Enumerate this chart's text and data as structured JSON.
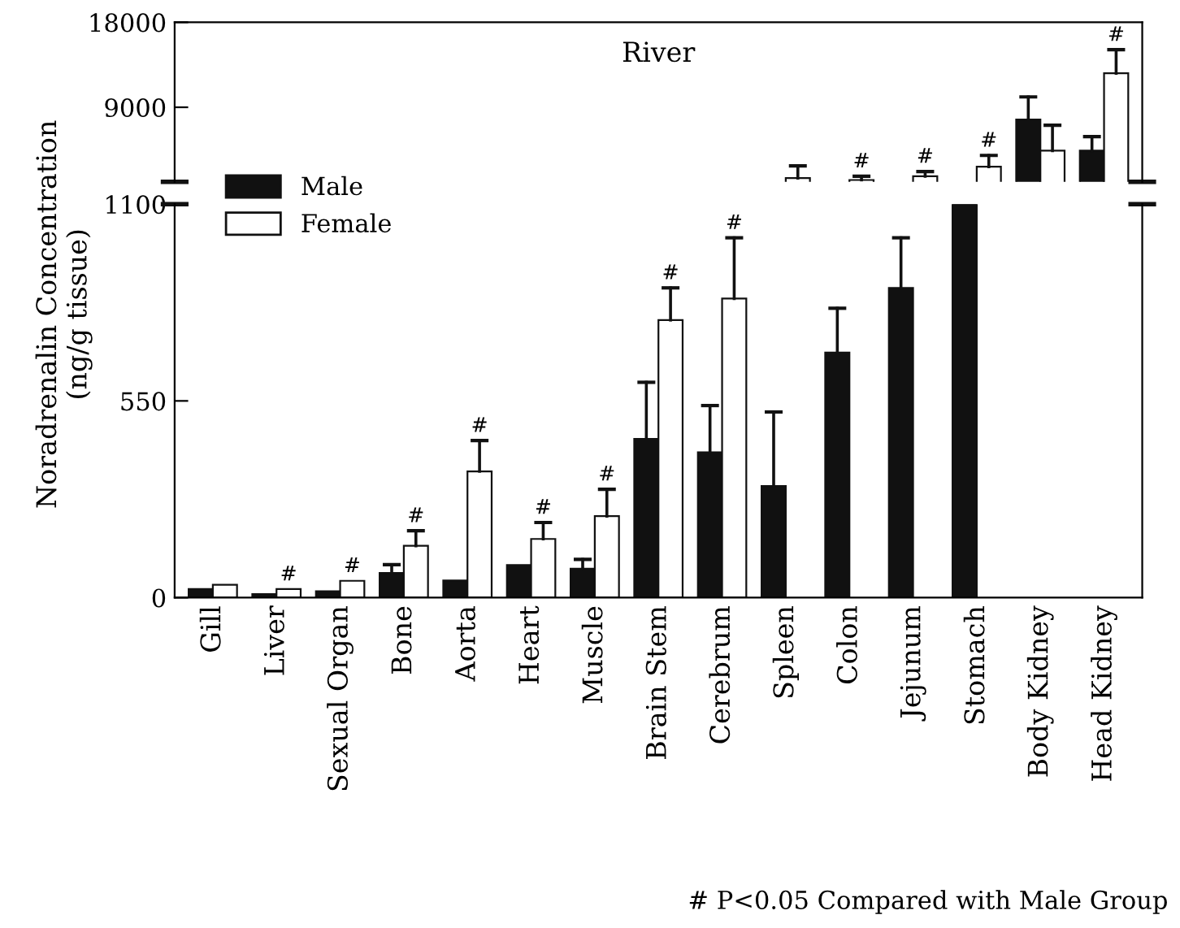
{
  "chart_data": [
    {
      "type": "bar",
      "title": "River",
      "categories": [
        "Gill",
        "Liver",
        "Sexual Organ",
        "Bone",
        "Aorta",
        "Heart",
        "Muscle",
        "Brain Stem",
        "Cerebrum",
        "Spleen",
        "Colon",
        "Jejunum",
        "Stomach",
        "Body Kidney",
        "Head Kidney"
      ],
      "series": [
        {
          "color": "#111111",
          "values": [
            null,
            null,
            null,
            null,
            null,
            null,
            null,
            null,
            null,
            null,
            null,
            null,
            null,
            7700,
            4400
          ],
          "errors": [
            null,
            null,
            null,
            null,
            null,
            null,
            null,
            null,
            null,
            null,
            null,
            null,
            null,
            [
              7700,
              10100
            ],
            [
              4400,
              5900
            ]
          ]
        },
        {
          "color": "#ffffff",
          "values": [
            null,
            null,
            null,
            null,
            null,
            null,
            null,
            null,
            null,
            1500,
            1300,
            1700,
            2700,
            4400,
            12600
          ],
          "errors": [
            null,
            null,
            null,
            null,
            null,
            null,
            null,
            null,
            null,
            [
              1500,
              2800
            ],
            [
              1300,
              1700
            ],
            [
              1700,
              2200
            ],
            [
              2700,
              3900
            ],
            [
              4400,
              7100
            ],
            [
              12600,
              15100
            ]
          ]
        }
      ],
      "ylim": [
        1100,
        18000
      ],
      "yticks": [
        9000,
        18000
      ],
      "tick_labels": "y",
      "grid": false,
      "annotations": [
        {
          "text": "#",
          "x": "Colon",
          "y": 1700
        },
        {
          "text": "#",
          "x": "Jejunum",
          "y": 2200
        },
        {
          "text": "#",
          "x": "Stomach",
          "y": 3900
        },
        {
          "text": "#",
          "x": "Head Kidney",
          "y": 15100
        }
      ]
    },
    {
      "type": "bar",
      "ylabel": "Noradrenalin Concentration\n(ng/g tissue)",
      "categories": [
        "Gill",
        "Liver",
        "Sexual Organ",
        "Bone",
        "Aorta",
        "Heart",
        "Muscle",
        "Brain Stem",
        "Cerebrum",
        "Spleen",
        "Colon",
        "Jejunum",
        "Stomach",
        "Body Kidney",
        "Head Kidney"
      ],
      "series": [
        {
          "name": "Male",
          "color": "#111111",
          "values": [
            24,
            10,
            18,
            69,
            48,
            91,
            81,
            444,
            406,
            312,
            685,
            866,
            1100,
            null,
            null
          ],
          "errors": [
            null,
            null,
            null,
            [
              69,
              92
            ],
            null,
            null,
            [
              81,
              107
            ],
            [
              444,
              602
            ],
            [
              406,
              537
            ],
            [
              312,
              519
            ],
            [
              685,
              809
            ],
            [
              866,
              1006
            ],
            null,
            null,
            null
          ]
        },
        {
          "name": "Female",
          "color": "#ffffff",
          "values": [
            36,
            24,
            47,
            145,
            353,
            164,
            228,
            776,
            836,
            null,
            null,
            null,
            null,
            null,
            null
          ],
          "errors": [
            null,
            null,
            null,
            [
              145,
              187
            ],
            [
              353,
              439
            ],
            [
              164,
              210
            ],
            [
              228,
              303
            ],
            [
              776,
              866
            ],
            [
              836,
              1006
            ],
            null,
            null,
            null,
            null,
            null,
            null
          ]
        }
      ],
      "ylim": [
        0,
        1100
      ],
      "yticks": [
        0,
        550,
        1100
      ],
      "grid": false,
      "legend": "top left",
      "annotations": [
        {
          "text": "#",
          "x": "Liver",
          "y": 24
        },
        {
          "text": "#",
          "x": "Sexual Organ",
          "y": 47
        },
        {
          "text": "#",
          "x": "Bone",
          "y": 187
        },
        {
          "text": "#",
          "x": "Aorta",
          "y": 439
        },
        {
          "text": "#",
          "x": "Heart",
          "y": 210
        },
        {
          "text": "#",
          "x": "Muscle",
          "y": 303
        },
        {
          "text": "#",
          "x": "Brain Stem",
          "y": 866
        },
        {
          "text": "#",
          "x": "Cerebrum",
          "y": 1006
        },
        "# P<0.05 Compared with Male Group"
      ]
    }
  ]
}
